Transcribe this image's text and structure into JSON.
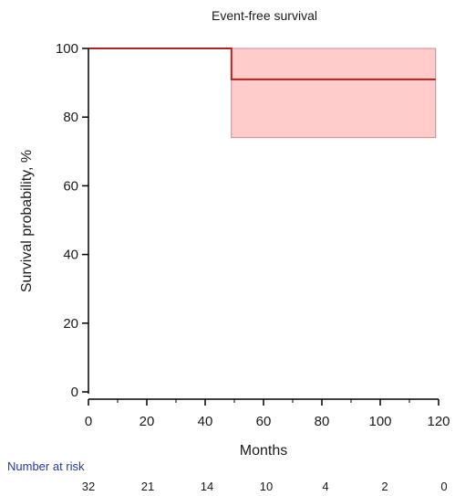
{
  "chart_data": {
    "type": "line",
    "title": "Event-free survival",
    "xlabel": "Months",
    "ylabel": "Survival probability, %",
    "xlim": [
      0,
      120
    ],
    "ylim": [
      0,
      100
    ],
    "xticks": [
      0,
      20,
      40,
      60,
      80,
      100,
      120
    ],
    "yticks": [
      0,
      20,
      40,
      60,
      80,
      100
    ],
    "grid": false,
    "series": [
      {
        "step": [
          [
            0,
            100
          ],
          [
            49,
            100
          ],
          [
            49,
            91
          ],
          [
            119,
            91
          ]
        ],
        "ci_lower": [
          [
            0,
            100
          ],
          [
            49,
            100
          ],
          [
            49,
            74
          ],
          [
            119,
            74
          ]
        ],
        "ci_upper": [
          [
            0,
            100
          ],
          [
            49,
            100
          ],
          [
            49,
            100
          ],
          [
            119,
            100
          ]
        ],
        "color": "#b22222",
        "ci_color": "#ffcccc"
      }
    ],
    "risk_table": {
      "title": "Number at risk",
      "times": [
        0,
        20,
        40,
        60,
        80,
        100,
        120
      ],
      "values": [
        32,
        21,
        14,
        10,
        4,
        2,
        0
      ]
    }
  }
}
